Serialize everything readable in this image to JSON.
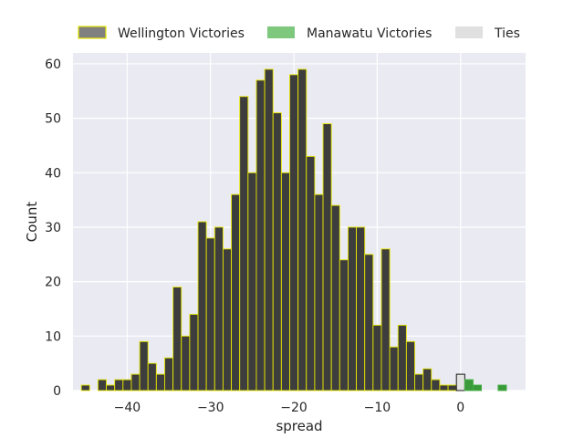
{
  "chart_data": {
    "type": "bar",
    "subtype": "histogram",
    "xlabel": "spread",
    "ylabel": "Count",
    "xlim": [
      -46.5,
      7.8
    ],
    "ylim": [
      0,
      62
    ],
    "x_ticks": [
      -40,
      -30,
      -20,
      -10,
      0
    ],
    "x_tick_labels": [
      "−40",
      "−30",
      "−20",
      "−10",
      "0"
    ],
    "y_ticks": [
      0,
      10,
      20,
      30,
      40,
      50,
      60
    ],
    "grid": true,
    "legend_position": "top, outside plot",
    "bin_width": 1,
    "series": [
      {
        "name": "Wellington Victories",
        "color": "#3d3d3d",
        "edge_color": "#e6e600",
        "legend_color": "#808080",
        "x": [
          -45,
          -43,
          -42,
          -41,
          -40,
          -39,
          -38,
          -37,
          -36,
          -35,
          -34,
          -33,
          -32,
          -31,
          -30,
          -29,
          -28,
          -27,
          -26,
          -25,
          -24,
          -23,
          -22,
          -21,
          -20,
          -19,
          -18,
          -17,
          -16,
          -15,
          -14,
          -13,
          -12,
          -11,
          -10,
          -9,
          -8,
          -7,
          -6,
          -5,
          -4,
          -3,
          -2,
          -1
        ],
        "values": [
          1,
          2,
          1,
          2,
          2,
          3,
          9,
          5,
          3,
          6,
          19,
          10,
          14,
          31,
          28,
          30,
          26,
          36,
          54,
          40,
          57,
          59,
          51,
          40,
          58,
          59,
          43,
          36,
          49,
          34,
          24,
          30,
          30,
          25,
          12,
          26,
          8,
          12,
          9,
          3,
          4,
          2,
          1,
          1
        ]
      },
      {
        "name": "Ties",
        "color": "#e3e3e3",
        "edge_color": "#000000",
        "legend_color": "#e0e0e0",
        "x": [
          0
        ],
        "values": [
          3
        ]
      },
      {
        "name": "Manawatu Victories",
        "color": "#3a9a3a",
        "edge_color": "#44b044",
        "legend_color": "#7ec87e",
        "x": [
          1,
          2,
          5
        ],
        "values": [
          2,
          1,
          1
        ]
      }
    ]
  }
}
